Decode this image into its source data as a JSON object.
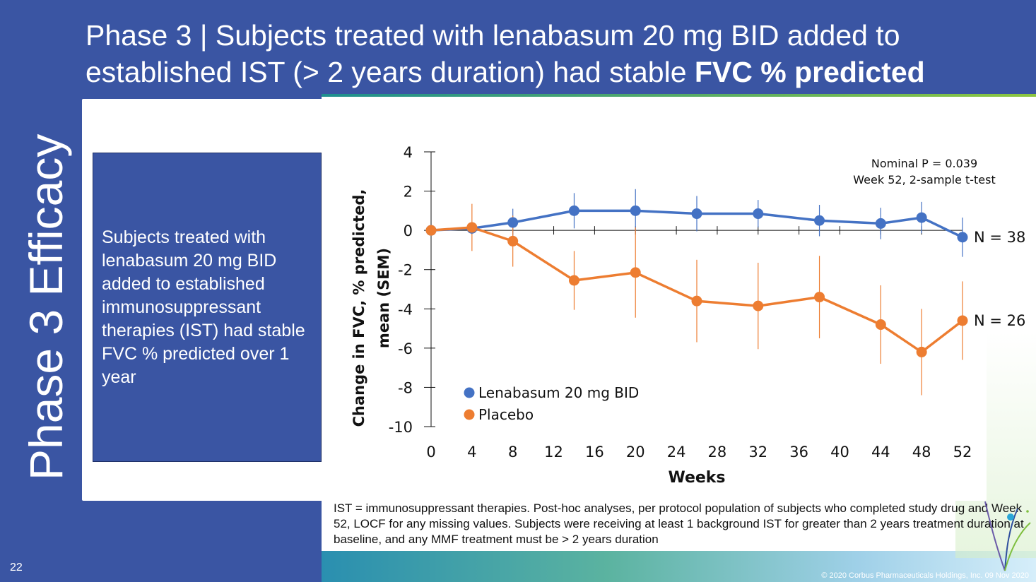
{
  "title": {
    "line1": "Phase 3  |  Subjects treated with lenabasum 20 mg BID added to",
    "line2_prefix": "established IST (> 2 years duration) had stable ",
    "line2_bold": "FVC % predicted"
  },
  "side_heading": "Phase 3 Efficacy",
  "summary_box": "Subjects treated with lenabasum 20 mg BID added to established immunosuppressant therapies (IST) had stable FVC % predicted over 1 year",
  "footnote": "IST = immunosuppressant therapies.  Post-hoc analyses, per protocol population of subjects who completed study drug and Week 52, LOCF for any missing values.  Subjects were receiving at least 1 background IST for greater than 2 years treatment duration at baseline, and any MMF treatment must be > 2 years duration",
  "page_number": "22",
  "copyright": "© 2020 Corbus Pharmaceuticals Holdings, Inc. 09 Nov 2020",
  "colors": {
    "brand_blue": "#3a55a3",
    "lenabasum": "#4472c4",
    "placebo": "#ed7d31"
  },
  "chart_data": {
    "type": "line",
    "xlabel": "Weeks",
    "ylabel_line1": "Change in FVC, % predicted,",
    "ylabel_line2": "mean (SEM)",
    "xlim": [
      0,
      52
    ],
    "ylim": [
      -10,
      4
    ],
    "x_ticks": [
      0,
      4,
      8,
      12,
      16,
      20,
      24,
      28,
      32,
      36,
      40,
      44,
      48,
      52
    ],
    "y_ticks": [
      4,
      2,
      0,
      -2,
      -4,
      -6,
      -8,
      -10
    ],
    "annotation_line1": "Nominal P = 0.039",
    "annotation_line2": "Week 52, 2-sample t-test",
    "legend_position": "bottom-left",
    "series": [
      {
        "name": "Lenabasum 20 mg BID",
        "end_label": "N = 38",
        "x": [
          0,
          4,
          8,
          14,
          20,
          26,
          32,
          38,
          44,
          48,
          52
        ],
        "y": [
          0,
          0.1,
          0.4,
          1.0,
          1.0,
          0.85,
          0.85,
          0.5,
          0.35,
          0.65,
          -0.35
        ],
        "sem": [
          0,
          0.3,
          0.7,
          0.9,
          1.1,
          0.9,
          0.7,
          0.8,
          0.8,
          0.8,
          1.0
        ]
      },
      {
        "name": "Placebo",
        "end_label": "N = 26",
        "x": [
          0,
          4,
          8,
          14,
          20,
          26,
          32,
          38,
          44,
          48,
          52
        ],
        "y": [
          0,
          0.15,
          -0.55,
          -2.55,
          -2.15,
          -3.6,
          -3.85,
          -3.4,
          -4.8,
          -6.2,
          -4.6
        ],
        "sem": [
          0,
          1.2,
          1.3,
          1.5,
          2.3,
          2.1,
          2.2,
          2.1,
          2.0,
          2.2,
          2.0
        ]
      }
    ]
  }
}
